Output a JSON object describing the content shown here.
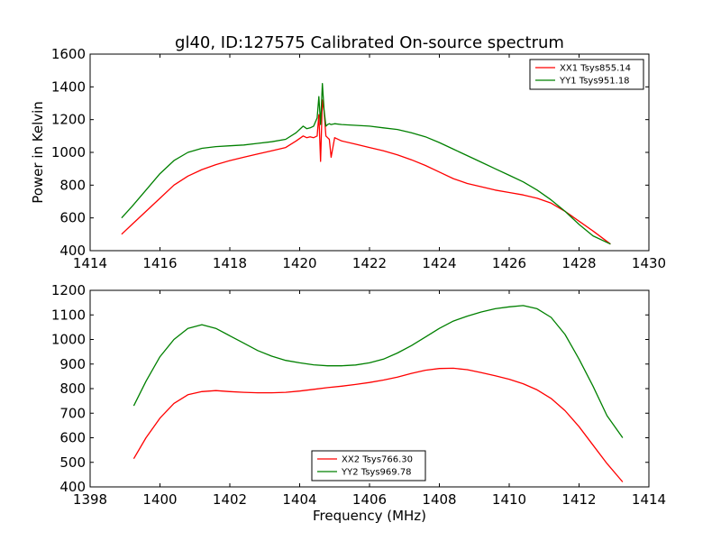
{
  "chart_data": [
    {
      "type": "line",
      "title": "gl40, ID:127575 Calibrated On-source spectrum",
      "xlabel": "",
      "ylabel": "Power in Kelvin",
      "xlim": [
        1414,
        1430
      ],
      "ylim": [
        400,
        1600
      ],
      "xticks": [
        1414,
        1416,
        1418,
        1420,
        1422,
        1424,
        1426,
        1428,
        1430
      ],
      "yticks": [
        400,
        600,
        800,
        1000,
        1200,
        1400,
        1600
      ],
      "legend_position": "top-right",
      "grid": false,
      "series": [
        {
          "name": "XX1 Tsys855.14",
          "color": "#ff0000",
          "x": [
            1414.9,
            1415.2,
            1415.6,
            1416.0,
            1416.4,
            1416.8,
            1417.2,
            1417.6,
            1418.0,
            1418.4,
            1418.8,
            1419.2,
            1419.6,
            1419.9,
            1420.1,
            1420.2,
            1420.3,
            1420.4,
            1420.5,
            1420.55,
            1420.6,
            1420.65,
            1420.7,
            1420.75,
            1420.8,
            1420.85,
            1420.9,
            1421.0,
            1421.2,
            1421.6,
            1422.0,
            1422.4,
            1422.8,
            1423.2,
            1423.6,
            1424.0,
            1424.4,
            1424.8,
            1425.2,
            1425.6,
            1426.0,
            1426.4,
            1426.8,
            1427.2,
            1427.6,
            1428.0,
            1428.4,
            1428.9
          ],
          "y": [
            500,
            560,
            640,
            720,
            800,
            855,
            895,
            925,
            950,
            970,
            990,
            1010,
            1030,
            1070,
            1100,
            1090,
            1095,
            1090,
            1100,
            1230,
            945,
            1320,
            1250,
            1100,
            1090,
            1080,
            970,
            1090,
            1070,
            1050,
            1030,
            1010,
            985,
            955,
            920,
            880,
            840,
            810,
            790,
            770,
            755,
            740,
            720,
            690,
            640,
            580,
            520,
            440
          ]
        },
        {
          "name": "YY1 Tsys951.18",
          "color": "#008000",
          "x": [
            1414.9,
            1415.2,
            1415.6,
            1416.0,
            1416.4,
            1416.8,
            1417.2,
            1417.6,
            1418.0,
            1418.4,
            1418.8,
            1419.2,
            1419.6,
            1419.9,
            1420.1,
            1420.2,
            1420.3,
            1420.4,
            1420.5,
            1420.55,
            1420.6,
            1420.65,
            1420.7,
            1420.75,
            1420.8,
            1420.85,
            1420.9,
            1421.0,
            1421.2,
            1421.6,
            1422.0,
            1422.4,
            1422.8,
            1423.2,
            1423.6,
            1424.0,
            1424.4,
            1424.8,
            1425.2,
            1425.6,
            1426.0,
            1426.4,
            1426.8,
            1427.2,
            1427.6,
            1428.0,
            1428.4,
            1428.9
          ],
          "y": [
            600,
            670,
            770,
            870,
            950,
            1000,
            1025,
            1035,
            1040,
            1045,
            1055,
            1065,
            1080,
            1120,
            1160,
            1145,
            1150,
            1160,
            1210,
            1340,
            1170,
            1420,
            1260,
            1160,
            1170,
            1175,
            1170,
            1175,
            1170,
            1165,
            1160,
            1150,
            1140,
            1120,
            1095,
            1060,
            1020,
            980,
            940,
            900,
            860,
            820,
            770,
            710,
            640,
            560,
            490,
            440
          ]
        }
      ]
    },
    {
      "type": "line",
      "title": "",
      "xlabel": "Frequency (MHz)",
      "ylabel": "",
      "xlim": [
        1398,
        1414
      ],
      "ylim": [
        400,
        1200
      ],
      "xticks": [
        1398,
        1400,
        1402,
        1404,
        1406,
        1408,
        1410,
        1412,
        1414
      ],
      "yticks": [
        400,
        500,
        600,
        700,
        800,
        900,
        1000,
        1100,
        1200
      ],
      "legend_position": "lower-center",
      "grid": false,
      "series": [
        {
          "name": "XX2 Tsys766.30",
          "color": "#ff0000",
          "x": [
            1399.25,
            1399.6,
            1400.0,
            1400.4,
            1400.8,
            1401.2,
            1401.6,
            1402.0,
            1402.4,
            1402.8,
            1403.2,
            1403.6,
            1404.0,
            1404.4,
            1404.8,
            1405.2,
            1405.6,
            1406.0,
            1406.4,
            1406.8,
            1407.2,
            1407.6,
            1408.0,
            1408.4,
            1408.8,
            1409.2,
            1409.6,
            1410.0,
            1410.4,
            1410.8,
            1411.2,
            1411.6,
            1412.0,
            1412.4,
            1412.8,
            1413.25
          ],
          "y": [
            515,
            600,
            680,
            740,
            775,
            788,
            792,
            788,
            785,
            783,
            783,
            785,
            790,
            797,
            804,
            810,
            817,
            825,
            835,
            847,
            862,
            875,
            882,
            883,
            877,
            865,
            852,
            838,
            820,
            795,
            760,
            710,
            645,
            570,
            495,
            420
          ]
        },
        {
          "name": "YY2 Tsys969.78",
          "color": "#008000",
          "x": [
            1399.25,
            1399.6,
            1400.0,
            1400.4,
            1400.8,
            1401.2,
            1401.6,
            1402.0,
            1402.4,
            1402.8,
            1403.2,
            1403.6,
            1404.0,
            1404.4,
            1404.8,
            1405.2,
            1405.6,
            1406.0,
            1406.4,
            1406.8,
            1407.2,
            1407.6,
            1408.0,
            1408.4,
            1408.8,
            1409.2,
            1409.6,
            1410.0,
            1410.4,
            1410.8,
            1411.2,
            1411.6,
            1412.0,
            1412.4,
            1412.8,
            1413.25
          ],
          "y": [
            730,
            830,
            930,
            1000,
            1045,
            1060,
            1045,
            1015,
            985,
            955,
            932,
            915,
            905,
            897,
            893,
            893,
            896,
            905,
            920,
            945,
            975,
            1010,
            1045,
            1075,
            1095,
            1112,
            1125,
            1133,
            1138,
            1125,
            1090,
            1020,
            920,
            810,
            690,
            600
          ]
        }
      ]
    }
  ]
}
